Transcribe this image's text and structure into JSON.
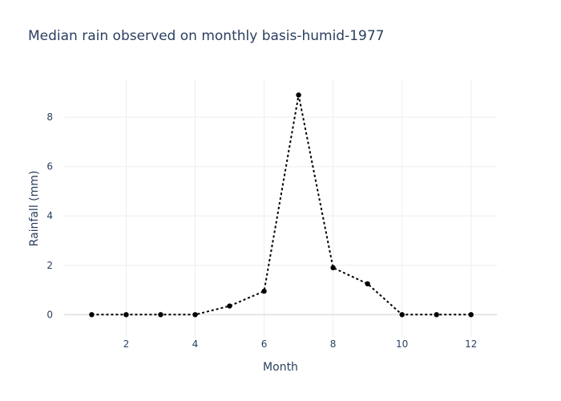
{
  "chart_data": {
    "type": "line",
    "title": "Median rain observed on monthly basis-humid-1977",
    "xlabel": "Month",
    "ylabel": "Rainfall (mm)",
    "x": [
      1,
      2,
      3,
      4,
      5,
      6,
      7,
      8,
      9,
      10,
      11,
      12
    ],
    "series": [
      {
        "values": [
          0,
          0,
          0,
          0,
          0.35,
          0.95,
          8.9,
          1.9,
          1.25,
          0,
          0,
          0
        ],
        "color": "#000000",
        "line_style": "dotted",
        "markers": true
      }
    ],
    "xlim": [
      0.2,
      12.75
    ],
    "ylim": [
      -0.9,
      9.5
    ],
    "x_ticks": [
      2,
      4,
      6,
      8,
      10,
      12
    ],
    "y_ticks": [
      0,
      2,
      4,
      6,
      8
    ],
    "grid": true,
    "colors": {
      "text": "#2a3f5f",
      "grid": "#eeeeee",
      "zero_line": "#e6e6e6",
      "series": "#000000"
    }
  }
}
